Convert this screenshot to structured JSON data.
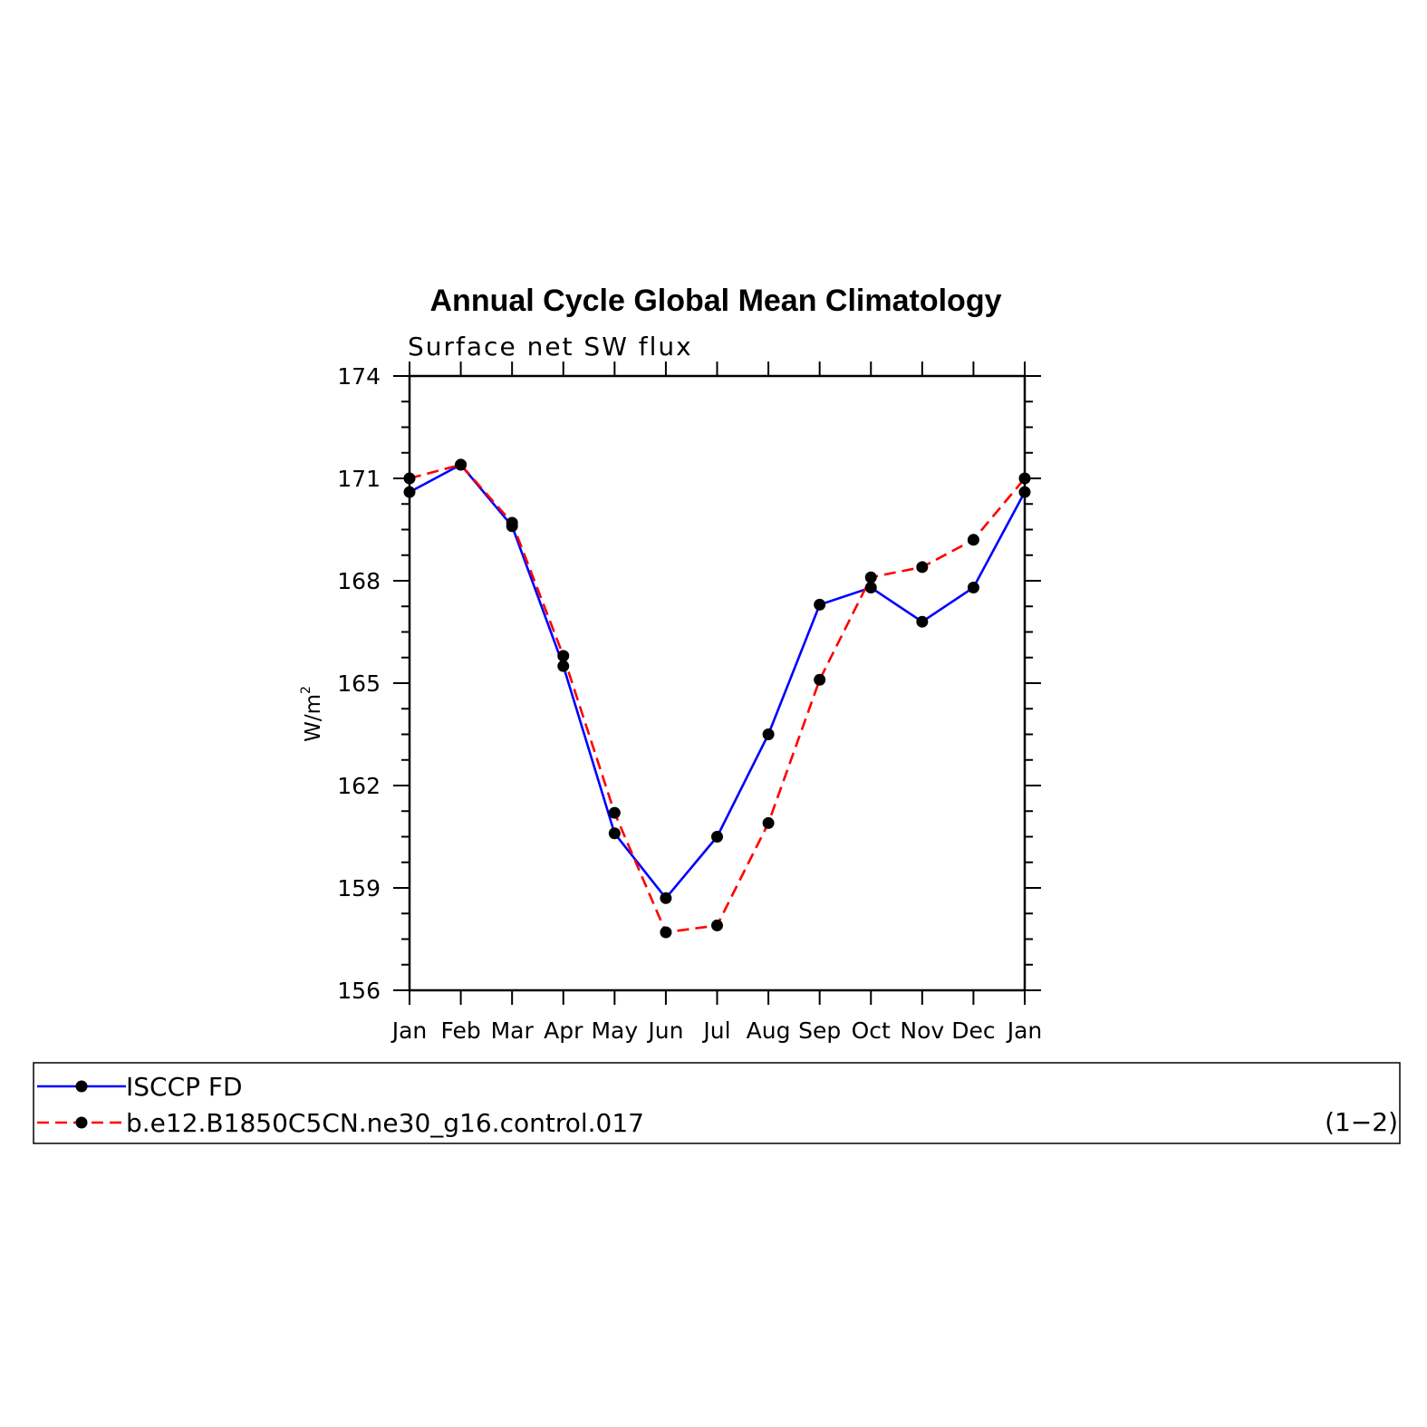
{
  "chart_data": {
    "type": "line",
    "title": "Annual Cycle Global Mean Climatology",
    "subtitle": "Surface net SW flux",
    "ylabel": "W/m",
    "ylabel_superscript": "2",
    "xlabel": "",
    "categories": [
      "Jan",
      "Feb",
      "Mar",
      "Apr",
      "May",
      "Jun",
      "Jul",
      "Aug",
      "Sep",
      "Oct",
      "Nov",
      "Dec",
      "Jan"
    ],
    "ylim": [
      156,
      174
    ],
    "yticks": [
      "156",
      "159",
      "162",
      "165",
      "168",
      "171",
      "174"
    ],
    "grid": false,
    "legend_position": "bottom",
    "panel_label": "(1−2)",
    "series": [
      {
        "name": "ISCCP FD",
        "color": "#0000ff",
        "dash": "solid",
        "marker": "dot",
        "values": [
          170.6,
          171.4,
          169.6,
          165.5,
          160.6,
          158.7,
          160.5,
          163.5,
          167.3,
          167.8,
          166.8,
          167.8,
          170.6
        ]
      },
      {
        "name": "b.e12.B1850C5CN.ne30_g16.control.017",
        "color": "#ff0000",
        "dash": "dashed",
        "marker": "dot",
        "values": [
          171.0,
          171.4,
          169.7,
          165.8,
          161.2,
          157.7,
          157.9,
          160.9,
          165.1,
          168.1,
          168.4,
          169.2,
          171.0
        ]
      }
    ]
  }
}
